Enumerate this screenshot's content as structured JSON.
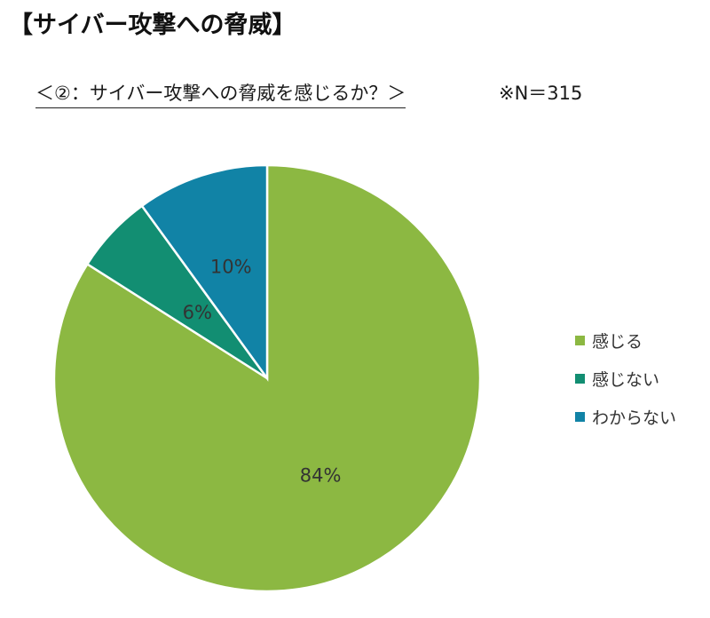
{
  "header": {
    "title": "【サイバー攻撃への脅威】"
  },
  "chart_data": {
    "type": "pie",
    "title": "＜②：サイバー攻撃への脅威を感じるか？＞",
    "note": "※N＝315",
    "slices": [
      {
        "label": "感じる",
        "value": 84,
        "value_label": "84%",
        "color": "#8cb842"
      },
      {
        "label": "感じない",
        "value": 6,
        "value_label": "6%",
        "color": "#128e72"
      },
      {
        "label": "わからない",
        "value": 10,
        "value_label": "10%",
        "color": "#1183a6"
      }
    ],
    "start_angle": "12 o'clock",
    "direction": "clockwise",
    "legend_position": "right"
  }
}
